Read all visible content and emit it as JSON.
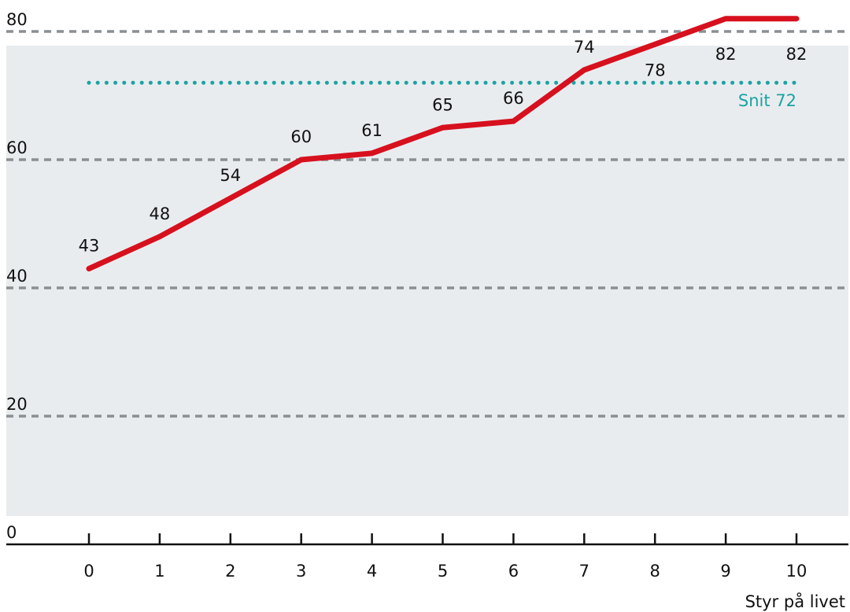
{
  "chart_data": {
    "type": "line",
    "title": "",
    "xlabel": "Styr på livet",
    "ylabel": "",
    "x": [
      0,
      1,
      2,
      3,
      4,
      5,
      6,
      7,
      8,
      9,
      10
    ],
    "x_tick_labels": [
      "0",
      "1",
      "2",
      "3",
      "4",
      "5",
      "6",
      "7",
      "8",
      "9",
      "10"
    ],
    "y_tick_labels": [
      "0",
      "20",
      "40",
      "60",
      "80"
    ],
    "ylim": [
      0,
      80
    ],
    "grid": true,
    "series": [
      {
        "values": [
          43,
          48,
          54,
          60,
          61,
          65,
          66,
          74,
          78,
          82,
          82
        ],
        "color": "#d7101e"
      }
    ],
    "reference_line": {
      "label": "Snit 72",
      "value": 72,
      "color": "#1aa3a3"
    },
    "colors": {
      "plot_background": "#e9ecef",
      "grid": "#8a8f93",
      "axis": "#111111"
    }
  }
}
